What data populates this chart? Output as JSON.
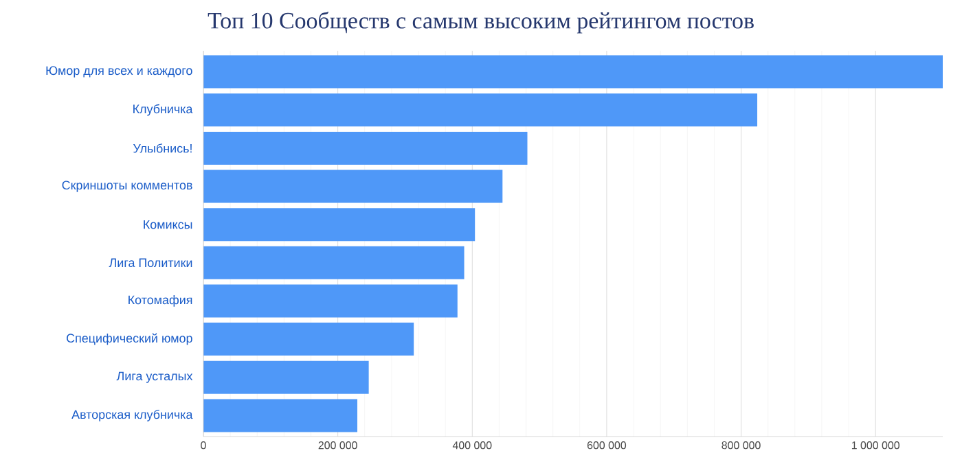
{
  "chart_data": {
    "type": "bar",
    "orientation": "horizontal",
    "title": "Топ 10 Сообществ с самым высоким рейтингом постов",
    "categories": [
      "Юмор для всех и каждого",
      "Клубничка",
      "Улыбнись!",
      "Скриншоты комментов",
      "Комиксы",
      "Лига Политики",
      "Котомафия",
      "Специфический юмор",
      "Лига усталых",
      "Авторская клубничка"
    ],
    "values": [
      1100000,
      824000,
      482000,
      445000,
      404000,
      388000,
      378000,
      313000,
      246000,
      229000
    ],
    "color": "#4f98f8",
    "xlim": [
      0,
      1100000
    ],
    "xticks": [
      {
        "value": 0,
        "label": "0"
      },
      {
        "value": 200000,
        "label": "200 000"
      },
      {
        "value": 400000,
        "label": "400 000"
      },
      {
        "value": 600000,
        "label": "600 000"
      },
      {
        "value": 800000,
        "label": "800 000"
      },
      {
        "value": 1000000,
        "label": "1 000 000"
      }
    ],
    "grid": "x"
  }
}
